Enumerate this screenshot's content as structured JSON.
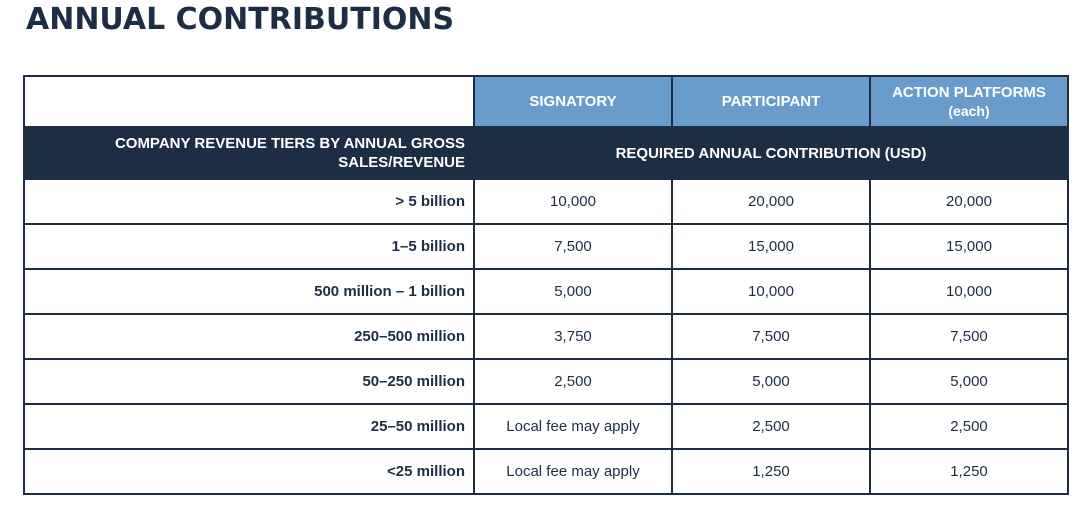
{
  "page": {
    "title": "ANNUAL CONTRIBUTIONS"
  },
  "table": {
    "columns": [
      {
        "label": "SIGNATORY",
        "sub": ""
      },
      {
        "label": "PARTICIPANT",
        "sub": ""
      },
      {
        "label": "ACTION PLATFORMS",
        "sub": "(each)"
      }
    ],
    "tier_header": "COMPANY REVENUE TIERS BY ANNUAL GROSS SALES/REVENUE",
    "contribution_header": "REQUIRED ANNUAL CONTRIBUTION (USD)",
    "rows": [
      {
        "tier": "> 5 billion",
        "values": [
          "10,000",
          "20,000",
          "20,000"
        ]
      },
      {
        "tier": "1–5 billion",
        "values": [
          "7,500",
          "15,000",
          "15,000"
        ]
      },
      {
        "tier": "500 million – 1 billion",
        "values": [
          "5,000",
          "10,000",
          "10,000"
        ]
      },
      {
        "tier": "250–500 million",
        "values": [
          "3,750",
          "7,500",
          "7,500"
        ]
      },
      {
        "tier": "50–250 million",
        "values": [
          "2,500",
          "5,000",
          "5,000"
        ]
      },
      {
        "tier": "25–50 million",
        "values": [
          "Local fee may apply",
          "2,500",
          "2,500"
        ]
      },
      {
        "tier": "<25 million",
        "values": [
          "Local fee may apply",
          "1,250",
          "1,250"
        ]
      }
    ]
  },
  "colors": {
    "navy": "#1d2d44",
    "header_blue": "#6a9ccb",
    "background": "#ffffff"
  }
}
